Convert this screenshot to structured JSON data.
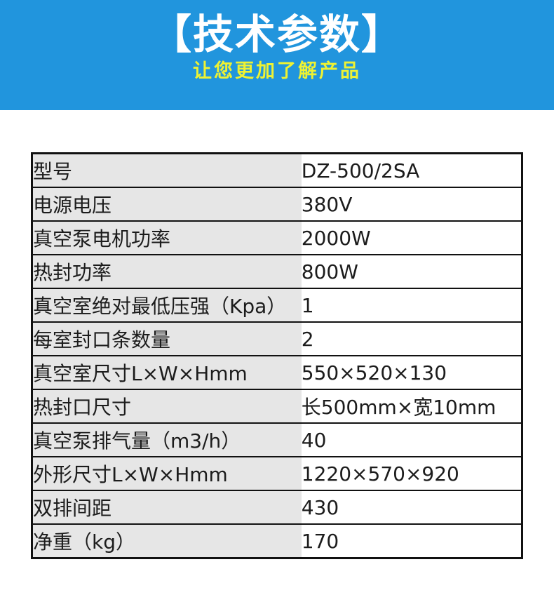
{
  "header": {
    "title": "【技术参数】",
    "subtitle": "让您更加了解产品",
    "bg_color": "#2195dd",
    "title_color": "#ffffff",
    "subtitle_color": "#eef233"
  },
  "spec_table": {
    "label_bg": "#e6e6e6",
    "border_color": "#111111",
    "rows": [
      {
        "label": "型号",
        "value": "DZ-500/2SA"
      },
      {
        "label": "电源电压",
        "value": "380V"
      },
      {
        "label": "真空泵电机功率",
        "value": "2000W"
      },
      {
        "label": "热封功率",
        "value": "800W"
      },
      {
        "label": "真空室绝对最低压强（Kpa）",
        "value": "1"
      },
      {
        "label": "每室封口条数量",
        "value": "2"
      },
      {
        "label": "真空室尺寸L×W×Hmm",
        "value": "550×520×130"
      },
      {
        "label": "热封口尺寸",
        "value": "长500mm×宽10mm"
      },
      {
        "label": "真空泵排气量（m3/h）",
        "value": "40"
      },
      {
        "label": "外形尺寸L×W×Hmm",
        "value": "1220×570×920"
      },
      {
        "label": "双排间距",
        "value": "430"
      },
      {
        "label": "净重（kg）",
        "value": "170"
      }
    ]
  }
}
